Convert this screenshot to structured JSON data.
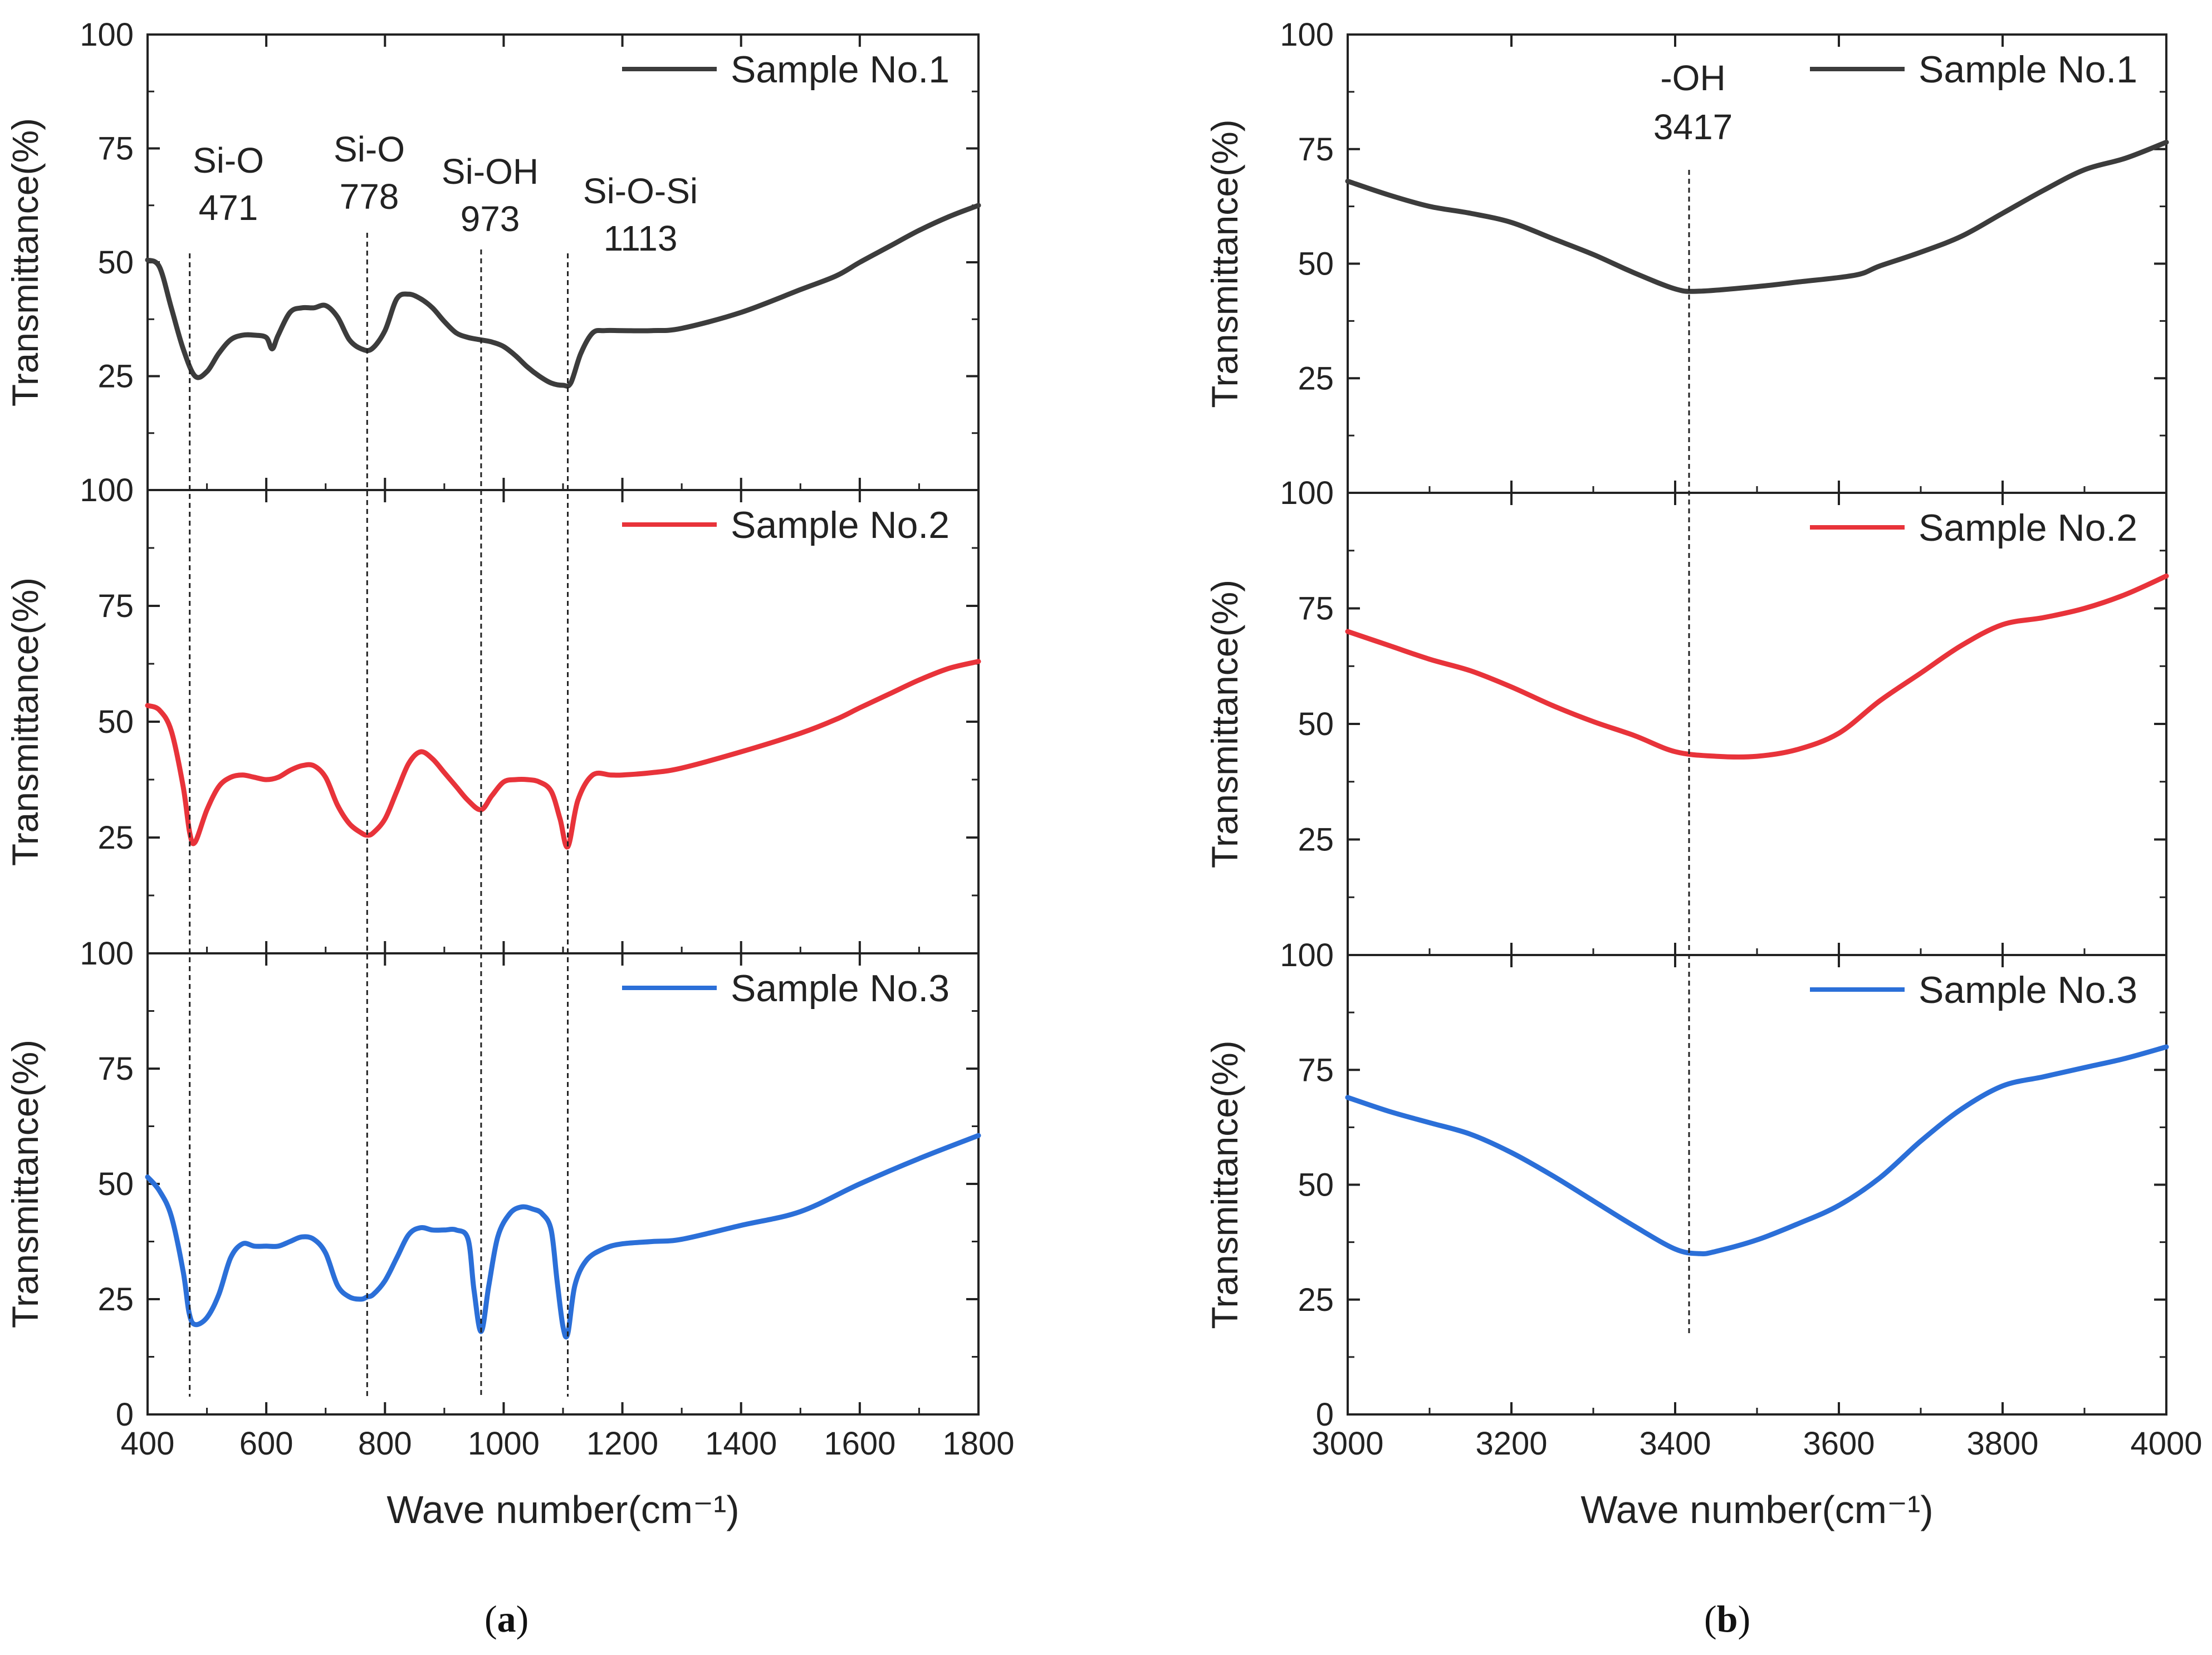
{
  "captions": {
    "a": "a",
    "b": "b"
  },
  "chart_data": [
    {
      "id": "a",
      "type": "line",
      "title": "",
      "xlabel": "Wave number(cm⁻¹)",
      "ylabel": "Transmittance(%)",
      "xlim": [
        400,
        1800
      ],
      "ylim": [
        0,
        100
      ],
      "xticks": [
        400,
        600,
        800,
        1000,
        1200,
        1400,
        1600,
        1800
      ],
      "yticks": [
        0,
        25,
        50,
        75,
        100
      ],
      "grid": false,
      "legend": "top-right",
      "peaks": [
        {
          "label": "Si-O",
          "value": "471",
          "x": 471
        },
        {
          "label": "Si-O",
          "value": "778",
          "x": 770
        },
        {
          "label": "Si-OH",
          "value": "973",
          "x": 962
        },
        {
          "label": "Si-O-Si",
          "value": "1113",
          "x": 1108
        }
      ],
      "series": [
        {
          "name": "Sample No.1",
          "color": "#3c3c3c",
          "x": [
            400,
            420,
            440,
            460,
            480,
            500,
            520,
            540,
            560,
            580,
            600,
            610,
            620,
            640,
            660,
            680,
            700,
            720,
            740,
            760,
            778,
            800,
            820,
            840,
            860,
            880,
            900,
            920,
            940,
            960,
            980,
            1000,
            1020,
            1040,
            1060,
            1080,
            1100,
            1113,
            1130,
            1150,
            1170,
            1200,
            1250,
            1300,
            1400,
            1500,
            1560,
            1600,
            1650,
            1700,
            1750,
            1800
          ],
          "y": [
            50.5,
            49,
            40,
            31,
            25,
            26,
            30,
            33,
            34,
            34,
            33.5,
            31,
            34,
            39,
            40,
            40,
            40.5,
            38,
            33,
            31,
            31,
            35,
            42,
            43,
            42,
            40,
            37,
            34.5,
            33.5,
            33,
            32.5,
            31.5,
            29.5,
            27,
            25,
            23.5,
            23,
            23.5,
            30,
            34.5,
            35,
            35,
            35,
            35.5,
            39,
            44,
            47,
            50,
            53.5,
            57,
            60,
            62.5
          ]
        },
        {
          "name": "Sample No.2",
          "color": "#e8333a",
          "x": [
            400,
            420,
            440,
            460,
            471,
            480,
            500,
            520,
            540,
            560,
            580,
            600,
            620,
            640,
            660,
            680,
            700,
            720,
            740,
            760,
            770,
            780,
            800,
            820,
            840,
            860,
            880,
            900,
            920,
            940,
            962,
            980,
            1000,
            1020,
            1040,
            1060,
            1080,
            1095,
            1108,
            1125,
            1150,
            1180,
            1200,
            1250,
            1300,
            1400,
            1500,
            1560,
            1600,
            1650,
            1700,
            1750,
            1800
          ],
          "y": [
            53.5,
            52.5,
            48,
            36,
            26,
            24,
            31,
            36,
            38,
            38.5,
            38,
            37.5,
            38,
            39.5,
            40.5,
            40.5,
            38,
            32,
            28,
            26,
            25.5,
            26,
            29,
            35,
            41,
            43.5,
            42,
            39,
            36,
            33,
            31,
            34,
            37,
            37.5,
            37.5,
            37,
            35,
            29,
            23,
            33,
            38.5,
            38.5,
            38.5,
            39,
            40,
            43.5,
            47.5,
            50.5,
            53,
            56,
            59,
            61.5,
            63
          ]
        },
        {
          "name": "Sample No.3",
          "color": "#2b6fd8",
          "x": [
            400,
            420,
            440,
            460,
            470,
            480,
            500,
            520,
            540,
            560,
            580,
            600,
            620,
            640,
            660,
            680,
            700,
            720,
            740,
            760,
            770,
            780,
            800,
            820,
            840,
            860,
            880,
            900,
            920,
            940,
            950,
            962,
            975,
            990,
            1010,
            1030,
            1050,
            1065,
            1080,
            1090,
            1100,
            1108,
            1120,
            1140,
            1170,
            1200,
            1250,
            1300,
            1400,
            1500,
            1600,
            1700,
            1800
          ],
          "y": [
            51.5,
            48.5,
            43,
            31,
            22,
            19.5,
            21,
            26,
            34,
            37,
            36.5,
            36.5,
            36.5,
            37.5,
            38.5,
            38,
            35,
            28,
            25.5,
            25,
            25.5,
            26,
            29,
            34,
            39,
            40.5,
            40,
            40,
            40,
            38,
            27,
            18,
            28,
            38.5,
            43.5,
            45,
            44.5,
            43.5,
            40,
            29,
            19,
            17.5,
            28,
            33.5,
            36,
            37,
            37.5,
            38,
            41,
            44,
            50,
            55.5,
            60.5
          ]
        }
      ]
    },
    {
      "id": "b",
      "type": "line",
      "title": "",
      "xlabel": "Wave number(cm⁻¹)",
      "ylabel": "Transmittance(%)",
      "xlim": [
        3000,
        4000
      ],
      "ylim": [
        0,
        100
      ],
      "xticks": [
        3000,
        3200,
        3400,
        3600,
        3800,
        4000
      ],
      "yticks": [
        0,
        25,
        50,
        75,
        100
      ],
      "grid": false,
      "legend": "top-right",
      "peaks": [
        {
          "label": "-OH",
          "value": "3417",
          "x": 3417
        }
      ],
      "series": [
        {
          "name": "Sample No.1",
          "color": "#3c3c3c",
          "x": [
            3000,
            3050,
            3100,
            3150,
            3200,
            3250,
            3300,
            3350,
            3400,
            3430,
            3500,
            3550,
            3620,
            3650,
            3700,
            3750,
            3800,
            3850,
            3900,
            3950,
            4000
          ],
          "y": [
            68,
            65,
            62.5,
            61,
            59,
            55.5,
            52,
            48,
            44.5,
            44,
            45,
            46,
            47.5,
            49.5,
            52.5,
            56,
            61,
            66,
            70.5,
            73,
            76.5
          ]
        },
        {
          "name": "Sample No.2",
          "color": "#e8333a",
          "x": [
            3000,
            3050,
            3100,
            3150,
            3200,
            3250,
            3300,
            3350,
            3400,
            3450,
            3500,
            3550,
            3600,
            3650,
            3700,
            3750,
            3800,
            3850,
            3900,
            3950,
            4000
          ],
          "y": [
            70,
            67,
            64,
            61.5,
            58,
            54,
            50.5,
            47.5,
            44,
            43,
            43,
            44.5,
            48,
            55,
            61,
            67,
            71.5,
            73,
            75,
            78,
            82
          ]
        },
        {
          "name": "Sample No.3",
          "color": "#2b6fd8",
          "x": [
            3000,
            3050,
            3100,
            3150,
            3200,
            3250,
            3300,
            3350,
            3400,
            3430,
            3450,
            3500,
            3550,
            3600,
            3650,
            3700,
            3750,
            3800,
            3850,
            3900,
            3950,
            4000
          ],
          "y": [
            69,
            66,
            63.5,
            61,
            57,
            52,
            46.5,
            41,
            36,
            35,
            35.5,
            38,
            41.5,
            45.5,
            51.5,
            59.5,
            66.5,
            71.5,
            73.5,
            75.5,
            77.5,
            80
          ]
        }
      ]
    }
  ]
}
